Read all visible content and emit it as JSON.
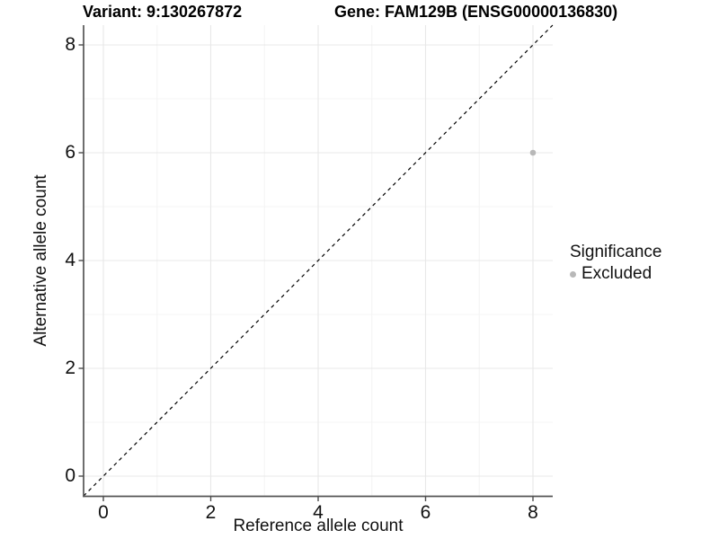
{
  "figure": {
    "title_left": "Variant: 9:130267872",
    "title_right": "Gene: FAM129B (ENSG00000136830)"
  },
  "chart_data": {
    "type": "scatter",
    "title": "Variant: 9:130267872    Gene: FAM129B (ENSG00000136830)",
    "xlabel": "Reference allele count",
    "ylabel": "Alternative allele count",
    "xlim": [
      -0.37,
      8.37
    ],
    "ylim": [
      -0.37,
      8.37
    ],
    "x_ticks": [
      0,
      2,
      4,
      6,
      8
    ],
    "y_ticks": [
      0,
      2,
      4,
      6,
      8
    ],
    "x_minor_ticks": [
      1,
      3,
      5,
      7
    ],
    "y_minor_ticks": [
      1,
      3,
      5,
      7
    ],
    "grid": "major and minor gridlines on white background",
    "series": [
      {
        "name": "Excluded",
        "points": [
          {
            "x": 8,
            "y": 6
          }
        ]
      }
    ],
    "reference_line": {
      "kind": "identity y=x",
      "style": "dashed",
      "color": "#000000"
    },
    "legend": {
      "title": "Significance",
      "position": "right",
      "items": [
        {
          "label": "Excluded",
          "color": "#b8b8b8"
        }
      ]
    },
    "colors": {
      "point": "#b8b8b8",
      "grid_major": "#e8e8e8",
      "grid_minor": "#f4f4f4",
      "axis_line": "#555555",
      "tick_mark": "#4d4d4d",
      "text": "#111111",
      "background": "#ffffff"
    }
  }
}
